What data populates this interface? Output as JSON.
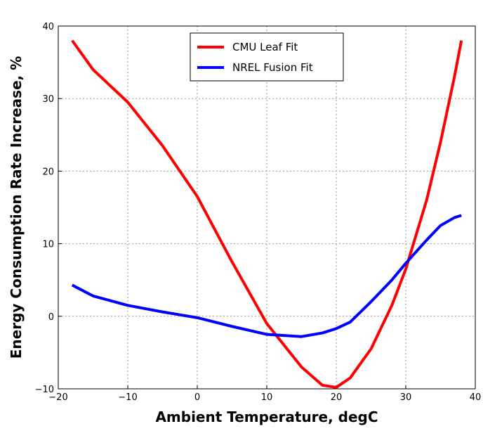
{
  "chart_data": {
    "type": "line",
    "xlabel": "Ambient Temperature, degC",
    "ylabel": "Energy Consumption Rate Increase, %",
    "x": [
      -18,
      -15,
      -10,
      -5,
      0,
      5,
      10,
      15,
      18,
      20,
      22,
      25,
      28,
      30,
      33,
      35,
      37,
      38
    ],
    "series": [
      {
        "name": "CMU Leaf Fit",
        "color": "#ff0000",
        "values": [
          38,
          34,
          29.5,
          23.5,
          16.5,
          7.5,
          -1,
          -7,
          -9.5,
          -9.8,
          -8.5,
          -4.5,
          1.5,
          6.5,
          16,
          24,
          33,
          38
        ]
      },
      {
        "name": "NREL Fusion Fit",
        "color": "#0000ff",
        "values": [
          4.3,
          2.8,
          1.5,
          0.6,
          -0.2,
          -1.4,
          -2.5,
          -2.8,
          -2.3,
          -1.7,
          -0.8,
          2,
          5,
          7.3,
          10.5,
          12.5,
          13.6,
          13.9
        ]
      }
    ],
    "xlim": [
      -20,
      40
    ],
    "xticks": [
      {
        "value": -20,
        "label": "−20"
      },
      {
        "value": -10,
        "label": "−10"
      },
      0,
      10,
      20,
      30,
      40
    ],
    "ylim": [
      -10,
      40
    ],
    "yticks": [
      {
        "value": -10,
        "label": "−10"
      },
      0,
      10,
      20,
      30,
      40
    ],
    "grid": true,
    "legend": "upper-center"
  }
}
